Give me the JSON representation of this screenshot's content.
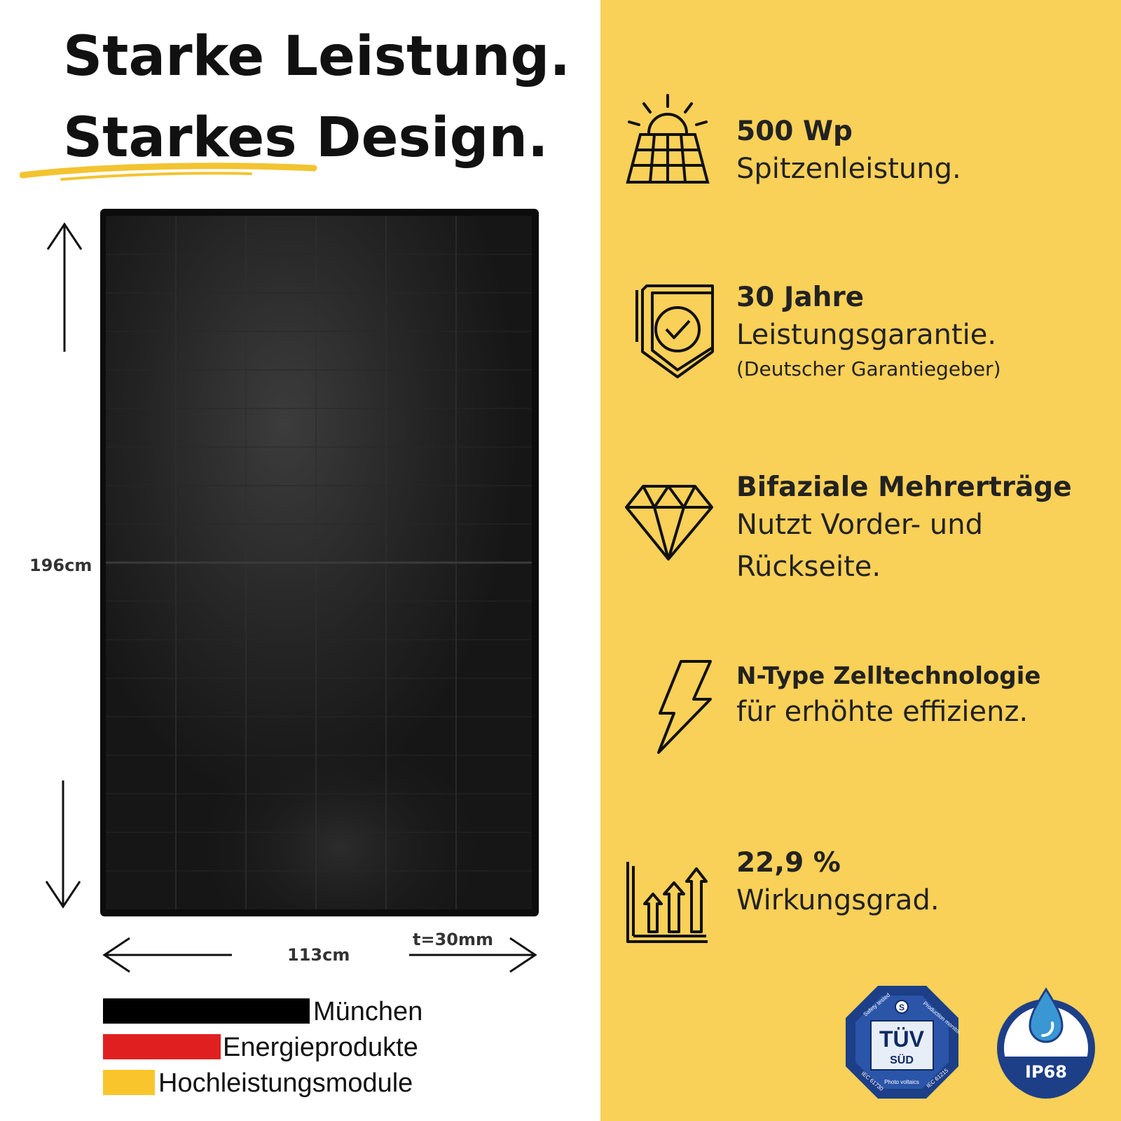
{
  "headline": {
    "line1": "Starke Leistung.",
    "line2": "Starkes Design."
  },
  "dimensions": {
    "height": "196cm",
    "width": "113cm",
    "thickness": "t=30mm"
  },
  "brand_lines": [
    {
      "label": "München",
      "color": "#000000"
    },
    {
      "label": "Energieprodukte",
      "color": "#e02020"
    },
    {
      "label": "Hochleistungsmodule",
      "color": "#f9c52c"
    }
  ],
  "features": [
    {
      "icon": "solar-panel-icon",
      "title": "500 Wp",
      "lines": [
        "Spitzenleistung."
      ]
    },
    {
      "icon": "warranty-shield-icon",
      "title": "30 Jahre",
      "lines": [
        "Leistungsgarantie."
      ],
      "note": "(Deutscher Garantiegeber)"
    },
    {
      "icon": "diamond-icon",
      "title": "Bifaziale Mehrerträge",
      "lines": [
        "Nutzt Vorder- und",
        "Rückseite."
      ]
    },
    {
      "icon": "lightning-icon",
      "title": "N-Type Zelltechnologie",
      "lines": [
        "für erhöhte effizienz."
      ]
    },
    {
      "icon": "growth-chart-icon",
      "title": "22,9 %",
      "lines": [
        "Wirkungsgrad."
      ]
    }
  ],
  "badges": {
    "tuv": {
      "main": "TÜV",
      "sub": "SÜD",
      "ring_left": "Safety tested",
      "ring_right": "Production monitored",
      "bottom_left": "IEC 61730",
      "bottom_mid": "Photo voltaics",
      "bottom_right": "IEC 61215"
    },
    "ip": {
      "label": "IP68"
    }
  },
  "colors": {
    "accent_yellow": "#f9d058",
    "badge_blue": "#1d3f88",
    "drop_blue": "#3a97d4"
  }
}
